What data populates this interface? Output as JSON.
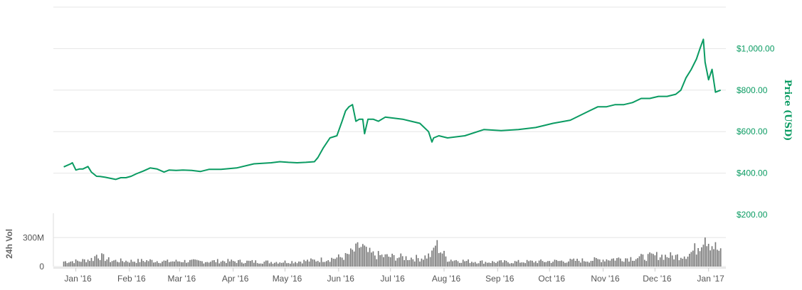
{
  "colors": {
    "price_line": "#0a9b62",
    "volume_bar": "#7a7a7a",
    "grid": "#e6e6e6",
    "price_axis_text": "#0a9b62",
    "x_axis_text": "#555555"
  },
  "chart_data": [
    {
      "type": "line",
      "title": "",
      "ylabel": "Price (USD)",
      "y_axis_side": "right",
      "ylim": [
        200,
        1200
      ],
      "y_ticks": [
        200,
        400,
        600,
        800,
        1000
      ],
      "y_tick_labels": [
        "$200.00",
        "$400.00",
        "$600.00",
        "$800.00",
        "$1,000.00"
      ],
      "grid": true,
      "legend": "none",
      "series": [
        {
          "x": [
            "2016-01-01",
            "2016-01-05",
            "2016-01-06",
            "2016-01-08",
            "2016-01-10",
            "2016-01-12",
            "2016-01-15",
            "2016-01-17",
            "2016-01-20",
            "2016-01-22",
            "2016-01-25",
            "2016-01-28",
            "2016-01-31",
            "2016-02-03",
            "2016-02-06",
            "2016-02-09",
            "2016-02-12",
            "2016-02-16",
            "2016-02-20",
            "2016-02-24",
            "2016-02-28",
            "2016-03-02",
            "2016-03-06",
            "2016-03-10",
            "2016-03-15",
            "2016-03-20",
            "2016-03-25",
            "2016-04-01",
            "2016-04-10",
            "2016-04-20",
            "2016-04-30",
            "2016-05-05",
            "2016-05-10",
            "2016-05-15",
            "2016-05-20",
            "2016-05-25",
            "2016-05-27",
            "2016-05-30",
            "2016-06-03",
            "2016-06-07",
            "2016-06-10",
            "2016-06-12",
            "2016-06-14",
            "2016-06-16",
            "2016-06-18",
            "2016-06-20",
            "2016-06-22",
            "2016-06-23",
            "2016-06-25",
            "2016-06-28",
            "2016-07-01",
            "2016-07-05",
            "2016-07-10",
            "2016-07-15",
            "2016-07-20",
            "2016-07-25",
            "2016-07-30",
            "2016-08-01",
            "2016-08-02",
            "2016-08-05",
            "2016-08-10",
            "2016-08-20",
            "2016-08-31",
            "2016-09-10",
            "2016-09-20",
            "2016-09-30",
            "2016-10-10",
            "2016-10-20",
            "2016-10-31",
            "2016-11-05",
            "2016-11-10",
            "2016-11-15",
            "2016-11-20",
            "2016-11-25",
            "2016-11-30",
            "2016-12-05",
            "2016-12-10",
            "2016-12-15",
            "2016-12-20",
            "2016-12-23",
            "2016-12-26",
            "2016-12-29",
            "2017-01-01",
            "2017-01-03",
            "2017-01-05",
            "2017-01-06",
            "2017-01-08",
            "2017-01-10",
            "2017-01-12",
            "2017-01-15"
          ],
          "y": [
            430,
            445,
            450,
            415,
            420,
            420,
            432,
            405,
            385,
            384,
            380,
            375,
            370,
            378,
            378,
            385,
            397,
            410,
            425,
            420,
            405,
            415,
            413,
            415,
            413,
            408,
            418,
            418,
            425,
            445,
            450,
            455,
            452,
            450,
            452,
            455,
            475,
            520,
            570,
            580,
            650,
            700,
            720,
            730,
            650,
            660,
            660,
            590,
            660,
            660,
            650,
            670,
            665,
            660,
            650,
            640,
            600,
            550,
            570,
            580,
            570,
            580,
            610,
            605,
            610,
            620,
            640,
            655,
            700,
            720,
            720,
            730,
            730,
            740,
            760,
            760,
            770,
            770,
            780,
            800,
            860,
            900,
            950,
            1000,
            1045,
            935,
            850,
            900,
            790,
            800
          ]
        }
      ]
    },
    {
      "type": "bar",
      "title": "",
      "ylabel": "24h Vol",
      "y_axis_side": "left",
      "ylim": [
        0,
        420
      ],
      "y_ticks": [
        0,
        300
      ],
      "y_tick_labels": [
        "0",
        "300M"
      ],
      "grid": true,
      "legend": "none",
      "x_ticks": [
        "2016-01-08",
        "2016-02-08",
        "2016-03-08",
        "2016-04-08",
        "2016-05-08",
        "2016-06-08",
        "2016-07-08",
        "2016-08-08",
        "2016-09-08",
        "2016-10-08",
        "2016-11-08",
        "2016-12-08",
        "2017-01-08"
      ],
      "x_tick_labels": [
        "Jan '16",
        "Feb '16",
        "Mar '16",
        "Apr '16",
        "May '16",
        "Jun '16",
        "Jul '16",
        "Aug '16",
        "Sep '16",
        "Oct '16",
        "Nov '16",
        "Dec '16",
        "Jan '17"
      ],
      "series": [
        {
          "x": [
            "2016-01-01",
            "2016-01-10",
            "2016-01-18",
            "2016-01-20",
            "2016-01-28",
            "2016-02-10",
            "2016-02-20",
            "2016-03-01",
            "2016-03-10",
            "2016-03-20",
            "2016-04-01",
            "2016-04-15",
            "2016-05-01",
            "2016-05-15",
            "2016-05-27",
            "2016-06-05",
            "2016-06-12",
            "2016-06-16",
            "2016-06-18",
            "2016-06-20",
            "2016-06-22",
            "2016-06-24",
            "2016-06-28",
            "2016-07-05",
            "2016-07-15",
            "2016-07-25",
            "2016-08-01",
            "2016-08-03",
            "2016-08-10",
            "2016-08-20",
            "2016-09-01",
            "2016-09-15",
            "2016-10-01",
            "2016-10-15",
            "2016-11-01",
            "2016-11-10",
            "2016-11-20",
            "2016-12-01",
            "2016-12-10",
            "2016-12-20",
            "2016-12-28",
            "2017-01-01",
            "2017-01-03",
            "2017-01-05",
            "2017-01-06",
            "2017-01-08",
            "2017-01-10",
            "2017-01-12",
            "2017-01-15"
          ],
          "values": [
            55,
            60,
            85,
            130,
            65,
            60,
            65,
            55,
            60,
            55,
            60,
            55,
            50,
            55,
            70,
            90,
            110,
            160,
            180,
            220,
            210,
            160,
            130,
            110,
            100,
            90,
            130,
            250,
            80,
            60,
            50,
            50,
            55,
            60,
            70,
            80,
            90,
            100,
            120,
            110,
            140,
            200,
            260,
            340,
            370,
            290,
            240,
            210,
            150
          ]
        }
      ]
    }
  ]
}
